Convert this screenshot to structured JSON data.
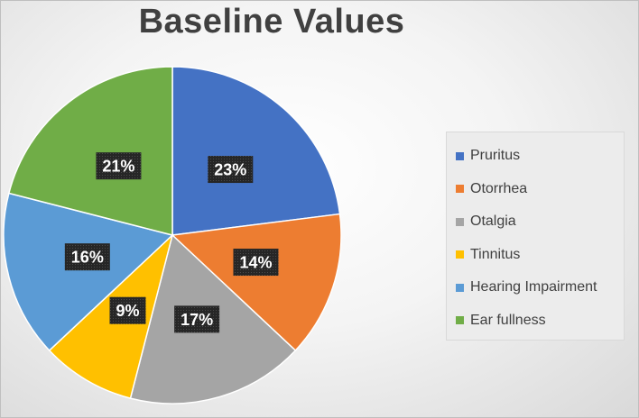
{
  "chart_data": {
    "type": "pie",
    "title": "Baseline Values",
    "legend_position": "right",
    "slices": [
      {
        "label": "Pruritus",
        "value": 23,
        "display": "23%",
        "color": "#4472C4"
      },
      {
        "label": "Otorrhea",
        "value": 14,
        "display": "14%",
        "color": "#ED7D31"
      },
      {
        "label": "Otalgia",
        "value": 17,
        "display": "17%",
        "color": "#A5A5A5"
      },
      {
        "label": "Tinnitus",
        "value": 9,
        "display": "9%",
        "color": "#FFC000"
      },
      {
        "label": "Hearing Impairment",
        "value": 16,
        "display": "16%",
        "color": "#5B9BD5"
      },
      {
        "label": "Ear fullness",
        "value": 21,
        "display": "21%",
        "color": "#70AD47"
      }
    ]
  }
}
